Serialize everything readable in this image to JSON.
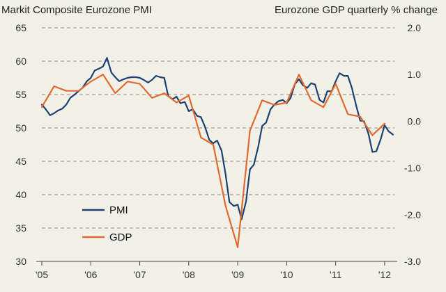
{
  "chart_data": {
    "type": "line",
    "title_left": "Markit Composite Eurozone PMI",
    "title_right": "Eurozone GDP quarterly % change",
    "x_tick_labels": [
      "'05",
      "'06",
      "'07",
      "'08",
      "'09",
      "'10",
      "'11",
      "'12"
    ],
    "x_tick_years": [
      2005,
      2006,
      2007,
      2008,
      2009,
      2010,
      2011,
      2012
    ],
    "xlim": [
      2005.0,
      2012.2
    ],
    "left_axis": {
      "ylim": [
        30,
        65
      ],
      "ticks": [
        30,
        35,
        40,
        45,
        50,
        55,
        60,
        65
      ],
      "tick_labels": [
        "30",
        "35",
        "40",
        "45",
        "50",
        "55",
        "60",
        "65"
      ]
    },
    "right_axis": {
      "ylim": [
        -3.0,
        2.0
      ],
      "ticks": [
        -3.0,
        -2.0,
        -1.0,
        0.0,
        1.0,
        2.0
      ],
      "tick_labels": [
        "-3.0",
        "-2.0",
        "-1.0",
        "0.0",
        "1.0",
        "2.0"
      ]
    },
    "grid": "horizontal dashed",
    "legend_placement": "bottom-left",
    "series": [
      {
        "name": "PMI",
        "axis": "left",
        "color": "#1f3f73",
        "x": [
          2005.0,
          2005.08,
          2005.17,
          2005.25,
          2005.33,
          2005.42,
          2005.5,
          2005.58,
          2005.67,
          2005.75,
          2005.83,
          2005.92,
          2006.0,
          2006.08,
          2006.17,
          2006.25,
          2006.33,
          2006.42,
          2006.5,
          2006.58,
          2006.67,
          2006.75,
          2006.83,
          2006.92,
          2007.0,
          2007.08,
          2007.17,
          2007.25,
          2007.33,
          2007.42,
          2007.5,
          2007.58,
          2007.67,
          2007.75,
          2007.83,
          2007.92,
          2008.0,
          2008.08,
          2008.17,
          2008.25,
          2008.33,
          2008.42,
          2008.5,
          2008.58,
          2008.67,
          2008.75,
          2008.83,
          2008.92,
          2009.0,
          2009.08,
          2009.17,
          2009.25,
          2009.33,
          2009.42,
          2009.5,
          2009.58,
          2009.67,
          2009.75,
          2009.83,
          2009.92,
          2010.0,
          2010.08,
          2010.17,
          2010.25,
          2010.33,
          2010.42,
          2010.5,
          2010.58,
          2010.67,
          2010.75,
          2010.83,
          2010.92,
          2011.0,
          2011.08,
          2011.17,
          2011.25,
          2011.33,
          2011.42,
          2011.5,
          2011.58,
          2011.67,
          2011.75,
          2011.83,
          2011.92,
          2012.0,
          2012.08,
          2012.17
        ],
        "values": [
          53.5,
          52.8,
          51.9,
          52.2,
          52.6,
          52.9,
          53.5,
          54.5,
          55.0,
          55.5,
          56.0,
          57.0,
          57.5,
          58.6,
          58.9,
          59.2,
          60.5,
          58.3,
          57.6,
          57.0,
          57.3,
          57.5,
          57.6,
          57.6,
          57.5,
          57.2,
          56.8,
          57.2,
          57.8,
          57.6,
          57.5,
          54.8,
          54.3,
          54.7,
          53.7,
          53.9,
          52.5,
          52.8,
          51.8,
          51.6,
          50.2,
          48.2,
          47.7,
          48.1,
          46.6,
          43.2,
          38.9,
          38.3,
          38.5,
          36.3,
          39.0,
          43.8,
          44.5,
          47.2,
          50.3,
          50.8,
          52.8,
          53.5,
          54.0,
          54.2,
          53.7,
          54.5,
          56.6,
          57.3,
          56.4,
          56.0,
          56.7,
          56.5,
          54.2,
          53.8,
          55.5,
          55.5,
          57.0,
          58.2,
          57.8,
          57.8,
          56.0,
          53.3,
          51.1,
          51.0,
          49.1,
          46.4,
          46.5,
          48.3,
          50.4,
          49.5,
          49.0
        ]
      },
      {
        "name": "GDP",
        "axis": "right",
        "color": "#e06a2e",
        "x": [
          2005.0,
          2005.25,
          2005.5,
          2005.75,
          2006.0,
          2006.25,
          2006.5,
          2006.75,
          2007.0,
          2007.25,
          2007.5,
          2007.75,
          2008.0,
          2008.25,
          2008.5,
          2008.75,
          2009.0,
          2009.25,
          2009.5,
          2009.75,
          2010.0,
          2010.25,
          2010.5,
          2010.75,
          2011.0,
          2011.25,
          2011.5,
          2011.75,
          2012.0
        ],
        "values": [
          0.3,
          0.75,
          0.65,
          0.65,
          0.85,
          1.0,
          0.6,
          0.85,
          0.8,
          0.5,
          0.6,
          0.4,
          0.55,
          -0.35,
          -0.5,
          -1.8,
          -2.7,
          -0.2,
          0.45,
          0.35,
          0.4,
          1.0,
          0.45,
          0.3,
          0.8,
          0.15,
          0.1,
          -0.3,
          -0.05
        ]
      }
    ]
  }
}
